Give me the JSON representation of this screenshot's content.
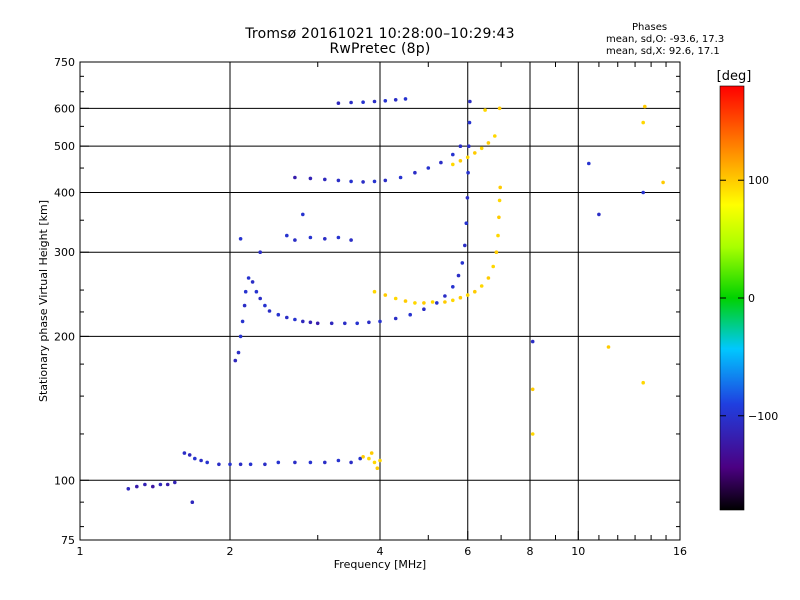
{
  "header": {
    "title_line1": "Tromsø 20161021 10:28:00–10:29:43",
    "title_line2": "RwPretec (8p)"
  },
  "stats": {
    "heading": "Phases",
    "line_o": "mean, sd,O: -93.6, 17.3",
    "line_x": "mean, sd,X: 92.6, 17.1"
  },
  "colorbar": {
    "unit_label": "[deg]",
    "range": [
      -180,
      180
    ],
    "ticks": [
      {
        "value": 100,
        "label": "100"
      },
      {
        "value": 0,
        "label": "0"
      },
      {
        "value": -100,
        "label": "−100"
      }
    ]
  },
  "colors": {
    "o_mode": "#1a4fe8",
    "o_mode_dark": "#2a1fb0",
    "x_mode": "#f2e11b",
    "x_mode_orange": "#f4b21a",
    "grid": "#000000"
  },
  "chart_data": {
    "type": "scatter",
    "xlabel": "Frequency [MHz]",
    "ylabel": "Stationary phase Virtual Height [km]",
    "x_scale": "log",
    "y_scale": "log",
    "xlim": [
      1,
      16
    ],
    "ylim": [
      75,
      750
    ],
    "x_ticks": [
      {
        "value": 1,
        "label": "1"
      },
      {
        "value": 2,
        "label": "2"
      },
      {
        "value": 4,
        "label": "4"
      },
      {
        "value": 6,
        "label": "6"
      },
      {
        "value": 8,
        "label": "8"
      },
      {
        "value": 10,
        "label": "10"
      },
      {
        "value": 16,
        "label": "16"
      }
    ],
    "y_ticks": [
      {
        "value": 75,
        "label": "75"
      },
      {
        "value": 100,
        "label": "100"
      },
      {
        "value": 200,
        "label": "200"
      },
      {
        "value": 300,
        "label": "300"
      },
      {
        "value": 400,
        "label": "400"
      },
      {
        "value": 500,
        "label": "500"
      },
      {
        "value": 600,
        "label": "600"
      },
      {
        "value": 750,
        "label": "750"
      }
    ],
    "x_grid": [
      2,
      4,
      6,
      8,
      10
    ],
    "y_grid": [
      100,
      200,
      300,
      400,
      500,
      600
    ],
    "grid": true,
    "color_by": "phase_deg",
    "series": [
      {
        "points": [
          [
            1.25,
            96,
            -110
          ],
          [
            1.3,
            97,
            -120
          ],
          [
            1.35,
            98,
            -115
          ],
          [
            1.4,
            97,
            -125
          ],
          [
            1.45,
            98,
            -110
          ],
          [
            1.5,
            98,
            -120
          ],
          [
            1.55,
            99,
            -115
          ],
          [
            1.62,
            114,
            -105
          ],
          [
            1.66,
            113,
            -110
          ],
          [
            1.7,
            111,
            -100
          ],
          [
            1.75,
            110,
            -105
          ],
          [
            1.8,
            109,
            -100
          ],
          [
            1.9,
            108,
            -105
          ],
          [
            2.0,
            108,
            -100
          ],
          [
            2.1,
            108,
            -105
          ],
          [
            2.2,
            108,
            -100
          ],
          [
            2.35,
            108,
            -105
          ],
          [
            2.5,
            109,
            -100
          ],
          [
            2.7,
            109,
            -105
          ],
          [
            2.9,
            109,
            -100
          ],
          [
            3.1,
            109,
            -105
          ],
          [
            3.3,
            110,
            -100
          ],
          [
            3.5,
            109,
            -105
          ],
          [
            3.65,
            111,
            -100
          ],
          [
            2.05,
            178,
            -110
          ],
          [
            2.08,
            185,
            -105
          ],
          [
            2.1,
            200,
            -100
          ],
          [
            2.12,
            215,
            -100
          ],
          [
            2.14,
            232,
            -105
          ],
          [
            2.15,
            248,
            -100
          ],
          [
            2.18,
            265,
            -100
          ],
          [
            2.22,
            260,
            -105
          ],
          [
            2.26,
            248,
            -100
          ],
          [
            2.3,
            240,
            -105
          ],
          [
            2.35,
            232,
            -100
          ],
          [
            2.4,
            226,
            -105
          ],
          [
            2.5,
            222,
            -100
          ],
          [
            2.6,
            219,
            -105
          ],
          [
            2.7,
            217,
            -100
          ],
          [
            2.8,
            215,
            -110
          ],
          [
            2.9,
            214,
            -115
          ],
          [
            3.0,
            213,
            -120
          ],
          [
            3.2,
            213,
            -110
          ],
          [
            3.4,
            213,
            -105
          ],
          [
            3.6,
            213,
            -100
          ],
          [
            3.8,
            214,
            -105
          ],
          [
            4.0,
            215,
            -100
          ],
          [
            4.3,
            218,
            -105
          ],
          [
            4.6,
            222,
            -100
          ],
          [
            4.9,
            228,
            -105
          ],
          [
            5.2,
            235,
            -100
          ],
          [
            5.4,
            243,
            -105
          ],
          [
            5.6,
            254,
            -100
          ],
          [
            5.75,
            268,
            -105
          ],
          [
            5.85,
            285,
            -100
          ],
          [
            5.92,
            310,
            -105
          ],
          [
            5.96,
            345,
            -100
          ],
          [
            5.99,
            390,
            -105
          ],
          [
            6.01,
            440,
            -100
          ],
          [
            6.03,
            500,
            -105
          ],
          [
            6.05,
            560,
            -100
          ],
          [
            6.06,
            620,
            -105
          ],
          [
            2.7,
            430,
            -120
          ],
          [
            2.9,
            428,
            -115
          ],
          [
            3.1,
            426,
            -110
          ],
          [
            3.3,
            424,
            -105
          ],
          [
            3.5,
            422,
            -100
          ],
          [
            3.7,
            421,
            -105
          ],
          [
            3.9,
            422,
            -100
          ],
          [
            4.1,
            424,
            -105
          ],
          [
            4.4,
            430,
            -100
          ],
          [
            4.7,
            440,
            -105
          ],
          [
            5.0,
            450,
            -100
          ],
          [
            5.3,
            462,
            -105
          ],
          [
            5.6,
            480,
            -100
          ],
          [
            5.8,
            500,
            -105
          ],
          [
            3.3,
            615,
            -110
          ],
          [
            3.5,
            617,
            -105
          ],
          [
            3.7,
            618,
            -100
          ],
          [
            3.9,
            620,
            -105
          ],
          [
            4.1,
            622,
            -100
          ],
          [
            4.3,
            625,
            -105
          ],
          [
            4.5,
            628,
            -100
          ],
          [
            2.6,
            325,
            -100
          ],
          [
            2.7,
            318,
            -105
          ],
          [
            2.9,
            322,
            -100
          ],
          [
            3.1,
            320,
            -105
          ],
          [
            3.3,
            322,
            -100
          ],
          [
            3.5,
            318,
            -105
          ],
          [
            2.1,
            320,
            -100
          ],
          [
            2.3,
            300,
            -105
          ],
          [
            2.8,
            360,
            -100
          ],
          [
            1.68,
            90,
            -110
          ],
          [
            8.1,
            195,
            -105
          ],
          [
            10.5,
            460,
            -100
          ],
          [
            11.0,
            360,
            -105
          ],
          [
            13.5,
            400,
            -100
          ]
        ]
      },
      {
        "points": [
          [
            3.7,
            112,
            100
          ],
          [
            3.8,
            111,
            95
          ],
          [
            3.85,
            114,
            100
          ],
          [
            3.9,
            109,
            95
          ],
          [
            3.95,
            106,
            100
          ],
          [
            4.0,
            110,
            95
          ],
          [
            3.9,
            248,
            95
          ],
          [
            4.1,
            244,
            100
          ],
          [
            4.3,
            240,
            95
          ],
          [
            4.5,
            237,
            100
          ],
          [
            4.7,
            235,
            95
          ],
          [
            4.9,
            235,
            100
          ],
          [
            5.1,
            236,
            95
          ],
          [
            5.4,
            236,
            100
          ],
          [
            5.6,
            238,
            95
          ],
          [
            5.8,
            241,
            100
          ],
          [
            6.0,
            244,
            95
          ],
          [
            6.2,
            248,
            100
          ],
          [
            6.4,
            255,
            95
          ],
          [
            6.6,
            265,
            100
          ],
          [
            6.75,
            280,
            95
          ],
          [
            6.85,
            300,
            100
          ],
          [
            6.9,
            325,
            95
          ],
          [
            6.93,
            355,
            100
          ],
          [
            6.95,
            385,
            95
          ],
          [
            6.97,
            410,
            100
          ],
          [
            5.6,
            458,
            95
          ],
          [
            5.8,
            466,
            100
          ],
          [
            6.0,
            474,
            95
          ],
          [
            6.2,
            484,
            100
          ],
          [
            6.4,
            495,
            95
          ],
          [
            6.6,
            508,
            100
          ],
          [
            6.8,
            525,
            95
          ],
          [
            6.95,
            600,
            100
          ],
          [
            6.5,
            595,
            95
          ],
          [
            8.1,
            155,
            100
          ],
          [
            8.1,
            125,
            95
          ],
          [
            11.5,
            190,
            100
          ],
          [
            13.5,
            560,
            95
          ],
          [
            13.6,
            605,
            100
          ],
          [
            13.5,
            160,
            95
          ],
          [
            14.8,
            420,
            100
          ]
        ]
      }
    ]
  }
}
